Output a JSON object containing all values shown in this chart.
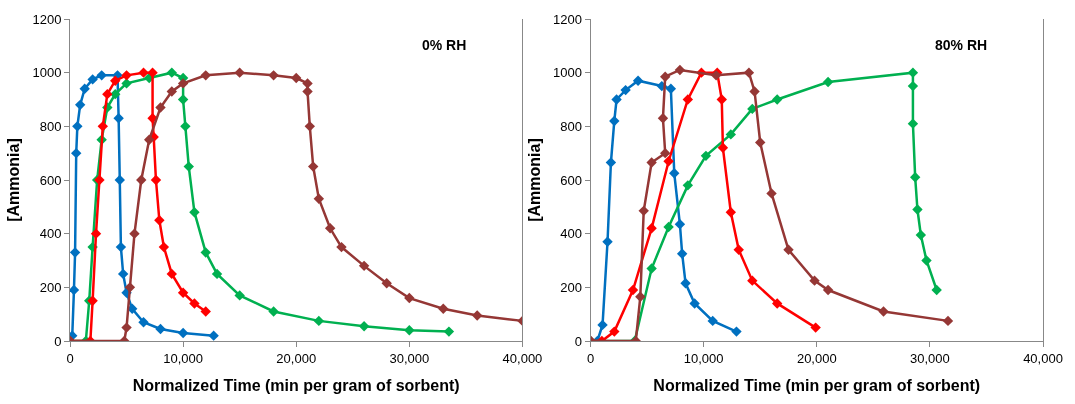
{
  "chart_data": [
    {
      "type": "line",
      "marker": "diamond",
      "line_style": "solid",
      "xlabel": "Normalized Time (min per gram of sorbent)",
      "ylabel": "[Ammonia]",
      "annotations": [
        "0% RH"
      ],
      "xlim": [
        0,
        40000
      ],
      "ylim": [
        0,
        1200
      ],
      "xticks": [
        0,
        {
          "value": 10000,
          "label": "10,000"
        },
        {
          "value": 20000,
          "label": "20,000"
        },
        {
          "value": 30000,
          "label": "30,000"
        },
        {
          "value": 40000,
          "label": "40,000"
        }
      ],
      "yticks": [
        0,
        200,
        400,
        600,
        800,
        1000,
        1200
      ],
      "series": [
        {
          "color": "#0070c0",
          "x": [
            0,
            200,
            350,
            450,
            550,
            650,
            900,
            1300,
            2000,
            2800,
            4200,
            4300,
            4400,
            4500,
            4700,
            5000,
            5500,
            6500,
            8000,
            10000,
            12700
          ],
          "values": [
            0,
            20,
            190,
            330,
            700,
            800,
            880,
            940,
            975,
            990,
            990,
            830,
            600,
            350,
            250,
            180,
            120,
            70,
            45,
            30,
            20
          ]
        },
        {
          "color": "#00b050",
          "x": [
            0,
            1400,
            1700,
            2000,
            2400,
            2800,
            3300,
            4000,
            5000,
            7000,
            9000,
            10000,
            10000,
            10200,
            10500,
            11000,
            12000,
            13000,
            15000,
            18000,
            22000,
            26000,
            30000,
            33500
          ],
          "values": [
            0,
            0,
            150,
            350,
            600,
            750,
            870,
            920,
            960,
            980,
            1000,
            980,
            900,
            800,
            650,
            480,
            330,
            250,
            170,
            110,
            75,
            55,
            40,
            35
          ]
        },
        {
          "color": "#ff0000",
          "x": [
            0,
            1800,
            2000,
            2300,
            2600,
            2900,
            3300,
            4000,
            5000,
            6500,
            7300,
            7300,
            7400,
            7600,
            7900,
            8300,
            9000,
            10000,
            11000,
            12000
          ],
          "values": [
            0,
            0,
            150,
            400,
            600,
            800,
            920,
            970,
            990,
            1000,
            1000,
            830,
            760,
            600,
            450,
            350,
            250,
            180,
            140,
            110
          ]
        },
        {
          "color": "#953735",
          "x": [
            0,
            4800,
            5000,
            5300,
            5700,
            6300,
            7000,
            8000,
            9000,
            10000,
            12000,
            15000,
            18000,
            20000,
            21000,
            21000,
            21200,
            21500,
            22000,
            23000,
            24000,
            26000,
            28000,
            30000,
            33000,
            36000,
            40000
          ],
          "values": [
            0,
            0,
            50,
            200,
            400,
            600,
            750,
            870,
            930,
            960,
            990,
            1000,
            990,
            980,
            960,
            930,
            800,
            650,
            530,
            420,
            350,
            280,
            215,
            160,
            120,
            95,
            75
          ]
        }
      ]
    },
    {
      "type": "line",
      "marker": "diamond",
      "line_style": "solid",
      "xlabel": "Normalized Time (min per gram of sorbent)",
      "ylabel": "[Ammonia]",
      "annotations": [
        "80% RH"
      ],
      "xlim": [
        0,
        40000
      ],
      "ylim": [
        0,
        1200
      ],
      "xticks": [
        0,
        {
          "value": 10000,
          "label": "10,000"
        },
        {
          "value": 20000,
          "label": "20,000"
        },
        {
          "value": 30000,
          "label": "30,000"
        },
        {
          "value": 40000,
          "label": "40,000"
        }
      ],
      "yticks": [
        0,
        200,
        400,
        600,
        800,
        1000,
        1200
      ],
      "series": [
        {
          "color": "#0070c0",
          "x": [
            0,
            600,
            1060,
            1500,
            1800,
            2100,
            2300,
            3100,
            4200,
            6300,
            7100,
            7400,
            7900,
            8100,
            8400,
            9200,
            10800,
            12900
          ],
          "values": [
            0,
            0,
            60,
            370,
            665,
            820,
            900,
            935,
            970,
            950,
            940,
            625,
            435,
            325,
            215,
            140,
            75,
            35
          ]
        },
        {
          "color": "#00b050",
          "x": [
            0,
            3900,
            5400,
            6900,
            8600,
            10200,
            12400,
            14300,
            16500,
            21000,
            28500,
            28500,
            28500,
            28700,
            28900,
            29200,
            29700,
            30600
          ],
          "values": [
            0,
            0,
            270,
            425,
            580,
            690,
            770,
            865,
            900,
            965,
            1000,
            950,
            810,
            610,
            490,
            395,
            300,
            190
          ]
        },
        {
          "color": "#ff0000",
          "x": [
            0,
            1000,
            2100,
            3750,
            5400,
            6900,
            8600,
            9800,
            11200,
            11600,
            11700,
            12400,
            13100,
            14300,
            16500,
            19900
          ],
          "values": [
            0,
            0,
            35,
            190,
            420,
            670,
            900,
            1000,
            1000,
            900,
            720,
            480,
            340,
            225,
            140,
            50
          ]
        },
        {
          "color": "#953735",
          "x": [
            0,
            4000,
            4400,
            4700,
            5400,
            6600,
            6400,
            6600,
            7900,
            11100,
            14000,
            14500,
            15000,
            16000,
            17500,
            19800,
            21000,
            25900,
            31600
          ],
          "values": [
            0,
            0,
            165,
            485,
            665,
            700,
            830,
            985,
            1010,
            990,
            1000,
            930,
            740,
            550,
            340,
            225,
            190,
            110,
            75
          ]
        }
      ]
    }
  ]
}
